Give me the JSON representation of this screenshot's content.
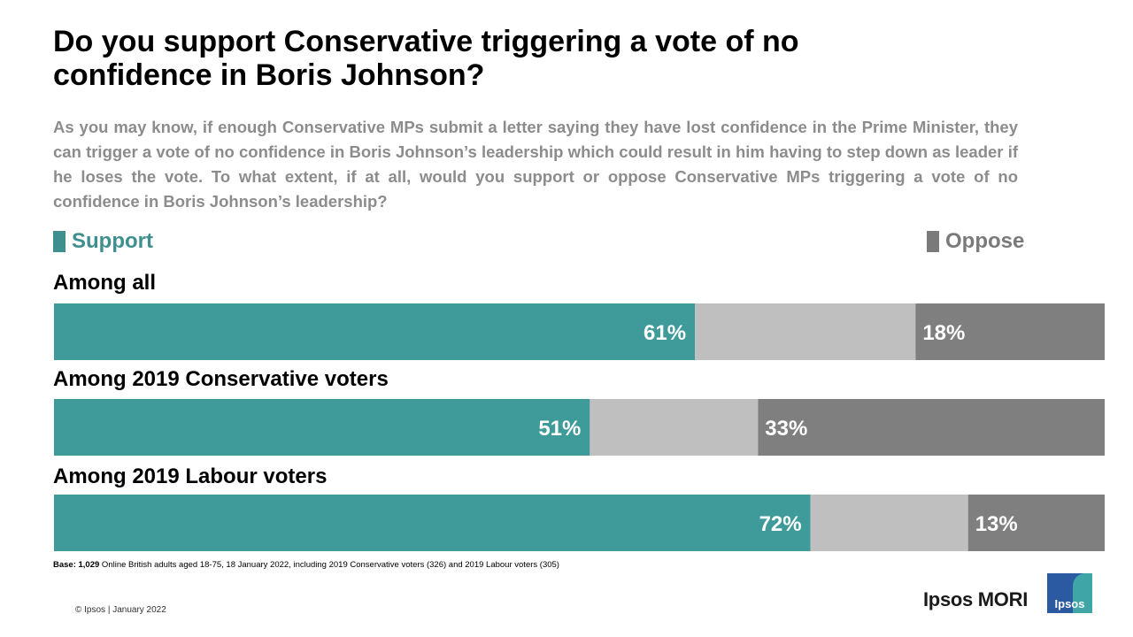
{
  "title": "Do you support Conservative triggering a vote of no confidence in Boris Johnson?",
  "subtitle": "As you may know, if enough Conservative MPs submit a letter saying they have lost confidence in the Prime Minister, they can trigger a vote of no confidence in Boris Johnson’s leadership which could result in him having to step down as leader if he loses the vote. To what extent, if at all, would you support or oppose Conservative MPs triggering a vote of no confidence in Boris Johnson’s leadership?",
  "legend": {
    "support": "Support",
    "oppose": "Oppose"
  },
  "colors": {
    "support": "#3f9b99",
    "neither": "#bfbfbf",
    "oppose": "#7f7f7f",
    "label": "#ffffff"
  },
  "chart_data": {
    "type": "bar",
    "orientation": "horizontal",
    "stacked": true,
    "categories": [
      "Among all",
      "Among 2019 Conservative voters",
      "Among 2019 Labour voters"
    ],
    "series": [
      {
        "name": "Support",
        "values": [
          61,
          51,
          72
        ],
        "labels": [
          "61%",
          "51%",
          "72%"
        ]
      },
      {
        "name": "",
        "values": [
          21,
          16,
          15
        ]
      },
      {
        "name": "Oppose",
        "values": [
          18,
          33,
          13
        ],
        "labels": [
          "18%",
          "33%",
          "13%"
        ]
      }
    ],
    "xlim": [
      0,
      100
    ],
    "grid": false,
    "legend": "top"
  },
  "base_note": {
    "bold": "Base: 1,029",
    "text": " Online British adults aged 18-75, 18 January 2022, including 2019 Conservative voters (326) and 2019 Labour voters (305)"
  },
  "copyright": "© Ipsos | January 2022",
  "brand": "Ipsos MORI",
  "logo_text": "Ipsos"
}
